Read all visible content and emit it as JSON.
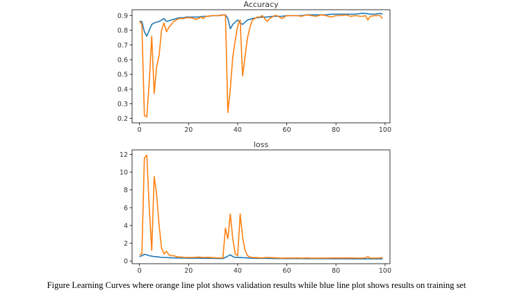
{
  "caption": "Figure Learning Curves where orange line plot shows validation results while blue line plot shows results on training set",
  "colors": {
    "train": "#1f77b4",
    "validation": "#ff7f0e",
    "axis": "#000000",
    "text": "#333333"
  },
  "chart_data": [
    {
      "type": "line",
      "title": "Accuracy",
      "xlabel": "",
      "ylabel": "",
      "xlim": [
        -3,
        102
      ],
      "ylim": [
        0.17,
        0.94
      ],
      "xticks": [
        0,
        20,
        40,
        60,
        80,
        100
      ],
      "yticks": [
        0.2,
        0.3,
        0.4,
        0.5,
        0.6,
        0.7,
        0.8,
        0.9
      ],
      "ytick_labels": [
        "0.2",
        "0.3",
        "0.4",
        "0.5",
        "0.6",
        "0.7",
        "0.8",
        "0.9"
      ],
      "grid": false,
      "series": [
        {
          "key": "train",
          "x": [
            0,
            1,
            2,
            3,
            4,
            5,
            6,
            7,
            8,
            9,
            10,
            11,
            12,
            13,
            14,
            15,
            16,
            17,
            18,
            19,
            20,
            22,
            24,
            26,
            28,
            30,
            32,
            34,
            35,
            36,
            37,
            38,
            40,
            41,
            42,
            44,
            46,
            48,
            50,
            52,
            54,
            56,
            58,
            60,
            62,
            64,
            66,
            68,
            70,
            72,
            74,
            76,
            78,
            80,
            82,
            84,
            86,
            88,
            90,
            92,
            94,
            96,
            98,
            99
          ],
          "values": [
            0.86,
            0.86,
            0.79,
            0.76,
            0.8,
            0.84,
            0.85,
            0.855,
            0.86,
            0.87,
            0.88,
            0.86,
            0.865,
            0.87,
            0.875,
            0.88,
            0.885,
            0.885,
            0.885,
            0.89,
            0.89,
            0.89,
            0.89,
            0.895,
            0.895,
            0.9,
            0.9,
            0.905,
            0.905,
            0.88,
            0.81,
            0.84,
            0.87,
            0.85,
            0.84,
            0.87,
            0.88,
            0.885,
            0.89,
            0.89,
            0.895,
            0.895,
            0.895,
            0.9,
            0.9,
            0.9,
            0.9,
            0.905,
            0.905,
            0.905,
            0.905,
            0.905,
            0.91,
            0.91,
            0.91,
            0.91,
            0.91,
            0.91,
            0.915,
            0.915,
            0.91,
            0.91,
            0.915,
            0.91
          ]
        },
        {
          "key": "validation",
          "x": [
            0,
            1,
            2,
            3,
            4,
            5,
            6,
            7,
            8,
            9,
            10,
            11,
            12,
            13,
            14,
            15,
            16,
            17,
            18,
            19,
            20,
            21,
            22,
            23,
            24,
            25,
            26,
            27,
            28,
            29,
            30,
            31,
            32,
            33,
            34,
            35,
            36,
            37,
            38,
            39,
            40,
            41,
            42,
            43,
            44,
            45,
            46,
            47,
            48,
            49,
            50,
            51,
            52,
            53,
            54,
            55,
            56,
            57,
            58,
            59,
            60,
            62,
            64,
            66,
            68,
            70,
            72,
            74,
            76,
            78,
            80,
            82,
            84,
            86,
            88,
            90,
            91,
            92,
            93,
            94,
            96,
            98,
            99
          ],
          "values": [
            0.86,
            0.84,
            0.22,
            0.21,
            0.45,
            0.76,
            0.37,
            0.55,
            0.63,
            0.8,
            0.85,
            0.79,
            0.82,
            0.84,
            0.86,
            0.87,
            0.88,
            0.88,
            0.88,
            0.885,
            0.885,
            0.885,
            0.88,
            0.875,
            0.88,
            0.89,
            0.88,
            0.895,
            0.895,
            0.9,
            0.9,
            0.9,
            0.9,
            0.9,
            0.905,
            0.905,
            0.24,
            0.4,
            0.62,
            0.73,
            0.83,
            0.87,
            0.49,
            0.62,
            0.75,
            0.82,
            0.87,
            0.88,
            0.89,
            0.89,
            0.9,
            0.88,
            0.86,
            0.88,
            0.89,
            0.9,
            0.9,
            0.89,
            0.88,
            0.89,
            0.9,
            0.9,
            0.9,
            0.895,
            0.905,
            0.9,
            0.895,
            0.905,
            0.9,
            0.89,
            0.9,
            0.9,
            0.905,
            0.895,
            0.9,
            0.895,
            0.895,
            0.9,
            0.87,
            0.895,
            0.9,
            0.9,
            0.88
          ]
        }
      ]
    },
    {
      "type": "line",
      "title": "loss",
      "xlabel": "",
      "ylabel": "",
      "xlim": [
        -3,
        102
      ],
      "ylim": [
        -0.3,
        12.5
      ],
      "xticks": [
        0,
        20,
        40,
        60,
        80,
        100
      ],
      "yticks": [
        0,
        2,
        4,
        6,
        8,
        10,
        12
      ],
      "ytick_labels": [
        "0",
        "2",
        "4",
        "6",
        "8",
        "10",
        "12"
      ],
      "grid": false,
      "series": [
        {
          "key": "train",
          "x": [
            0,
            1,
            2,
            3,
            4,
            5,
            6,
            7,
            8,
            9,
            10,
            12,
            14,
            16,
            18,
            20,
            22,
            24,
            26,
            28,
            30,
            32,
            34,
            35,
            36,
            37,
            38,
            39,
            40,
            42,
            44,
            46,
            48,
            50,
            55,
            60,
            65,
            70,
            75,
            80,
            85,
            90,
            95,
            99
          ],
          "values": [
            0.5,
            0.6,
            0.75,
            0.7,
            0.6,
            0.55,
            0.5,
            0.5,
            0.45,
            0.4,
            0.4,
            0.38,
            0.35,
            0.35,
            0.33,
            0.32,
            0.32,
            0.32,
            0.3,
            0.3,
            0.3,
            0.28,
            0.28,
            0.4,
            0.55,
            0.7,
            0.5,
            0.4,
            0.42,
            0.38,
            0.35,
            0.32,
            0.3,
            0.3,
            0.28,
            0.27,
            0.27,
            0.26,
            0.26,
            0.25,
            0.25,
            0.24,
            0.24,
            0.24
          ]
        },
        {
          "key": "validation",
          "x": [
            0,
            1,
            2,
            3,
            4,
            5,
            6,
            7,
            8,
            9,
            10,
            11,
            12,
            13,
            14,
            15,
            16,
            17,
            18,
            19,
            20,
            22,
            24,
            26,
            28,
            30,
            32,
            34,
            35,
            36,
            37,
            38,
            39,
            40,
            41,
            42,
            43,
            44,
            45,
            46,
            48,
            50,
            52,
            54,
            56,
            58,
            60,
            62,
            64,
            66,
            68,
            70,
            75,
            80,
            85,
            90,
            92,
            93,
            94,
            96,
            98,
            99
          ],
          "values": [
            0.7,
            0.8,
            11.6,
            11.9,
            6.0,
            1.2,
            9.5,
            7.5,
            4.0,
            1.5,
            0.8,
            1.1,
            0.7,
            0.6,
            0.6,
            0.5,
            0.45,
            0.45,
            0.4,
            0.4,
            0.4,
            0.4,
            0.45,
            0.4,
            0.42,
            0.38,
            0.35,
            0.35,
            3.7,
            2.5,
            5.3,
            2.5,
            0.8,
            0.6,
            5.3,
            2.7,
            1.2,
            0.6,
            0.45,
            0.4,
            0.38,
            0.35,
            0.4,
            0.38,
            0.35,
            0.32,
            0.34,
            0.33,
            0.35,
            0.32,
            0.35,
            0.32,
            0.33,
            0.34,
            0.35,
            0.32,
            0.35,
            0.5,
            0.32,
            0.33,
            0.34,
            0.42
          ]
        }
      ]
    }
  ]
}
